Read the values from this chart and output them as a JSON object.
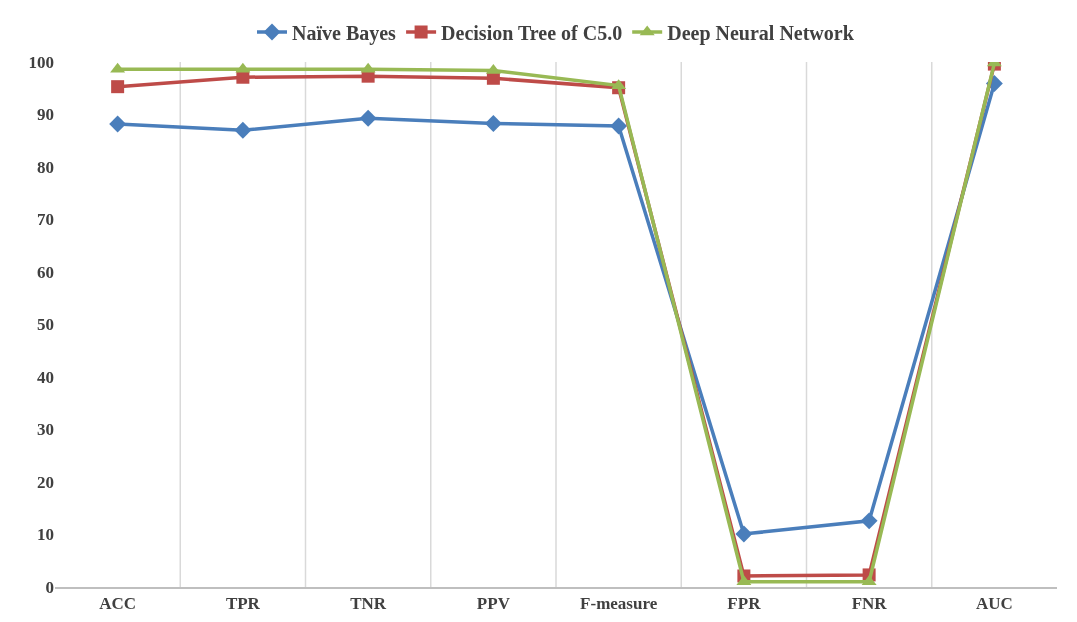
{
  "chart_data": {
    "type": "line",
    "categories": [
      "ACC",
      "TPR",
      "TNR",
      "PPV",
      "F-measure",
      "FPR",
      "FNR",
      "AUC"
    ],
    "series": [
      {
        "name": "Naïve Bayes",
        "color": "#4a7ebb",
        "marker": "diamond",
        "values": [
          88.2,
          87.0,
          89.3,
          88.3,
          87.8,
          10.1,
          12.6,
          95.9
        ]
      },
      {
        "name": "Decision Tree of C5.0",
        "color": "#be4b48",
        "marker": "square",
        "values": [
          95.3,
          97.1,
          97.3,
          96.9,
          95.1,
          2.1,
          2.3,
          99.6
        ]
      },
      {
        "name": "Deep Neural Network",
        "color": "#98b954",
        "marker": "triangle",
        "values": [
          98.6,
          98.6,
          98.6,
          98.4,
          95.5,
          1.0,
          1.0,
          99.8
        ]
      }
    ],
    "ylim": [
      0,
      100
    ],
    "yticks": [
      0,
      10,
      20,
      30,
      40,
      50,
      60,
      70,
      80,
      90,
      100
    ],
    "grid": "x",
    "legend": "top",
    "line_style": "solid"
  }
}
